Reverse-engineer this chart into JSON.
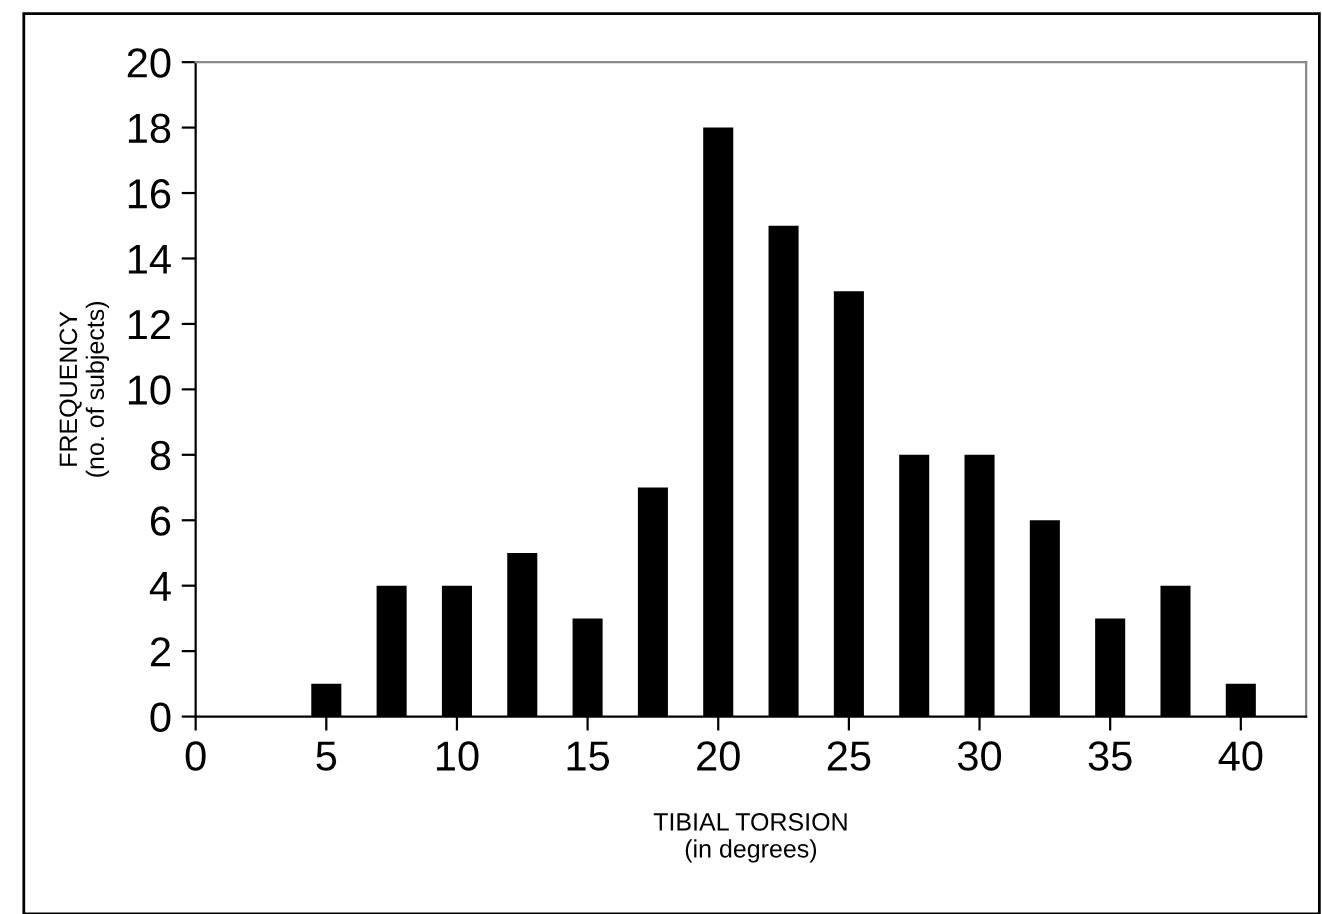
{
  "chart_data": {
    "type": "bar",
    "xlabel": "TIBIAL TORSION\n(in degrees)",
    "ylabel": "FREQUENCY\n(no. of subjects)",
    "x": [
      5,
      7.5,
      10,
      12.5,
      15,
      17.5,
      20,
      22.5,
      25,
      27.5,
      30,
      32.5,
      35,
      37.5,
      40
    ],
    "values": [
      1,
      4,
      4,
      5,
      3,
      7,
      18,
      15,
      13,
      8,
      8,
      6,
      3,
      4,
      1
    ],
    "color": "#000000",
    "xlim": [
      0,
      42.5
    ],
    "xticks": [
      0,
      5,
      10,
      15,
      20,
      25,
      30,
      35,
      40
    ],
    "ylim": [
      0,
      20
    ],
    "yticks": [
      0,
      2,
      4,
      6,
      8,
      10,
      12,
      14,
      16,
      18,
      20
    ],
    "grid": false,
    "legend": false
  }
}
